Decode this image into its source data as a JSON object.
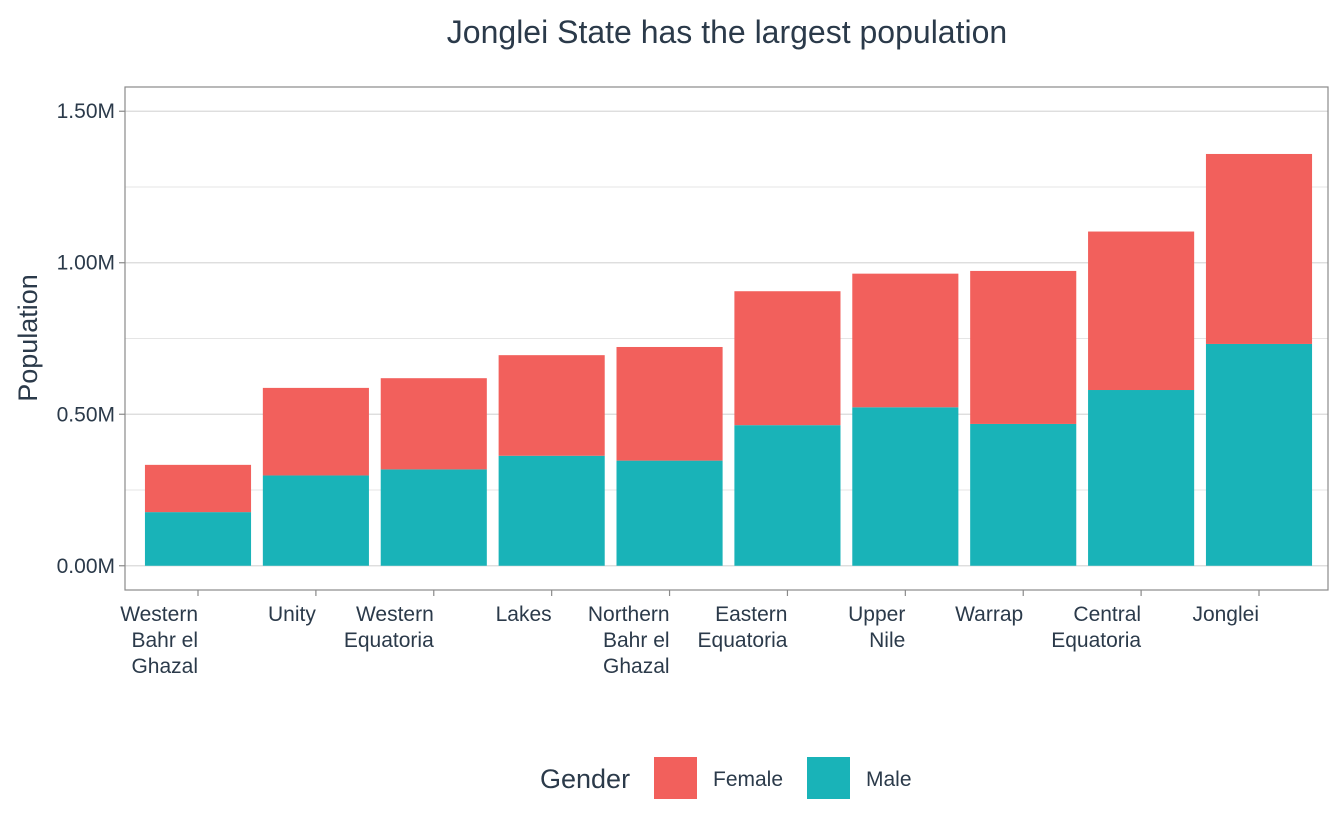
{
  "chart_data": {
    "type": "bar",
    "stacked": true,
    "title": "Jonglei State has the largest population",
    "xlabel": "",
    "ylabel": "Population",
    "ylim": [
      -0.08,
      1.58
    ],
    "y_unit_suffix": "M",
    "yticks": [
      0.0,
      0.5,
      1.0,
      1.5
    ],
    "ytick_labels": [
      "0.00M",
      "0.50M",
      "1.00M",
      "1.50M"
    ],
    "grid": true,
    "categories": [
      "Western Bahr el Ghazal",
      "Unity",
      "Western Equatoria",
      "Lakes",
      "Northern Bahr el Ghazal",
      "Eastern Equatoria",
      "Upper Nile",
      "Warrap",
      "Central Equatoria",
      "Jonglei"
    ],
    "category_label_lines": [
      [
        "Western",
        "Bahr el",
        "Ghazal"
      ],
      [
        "Unity"
      ],
      [
        "Western",
        "Equatoria"
      ],
      [
        "Lakes"
      ],
      [
        "Northern",
        "Bahr el",
        "Ghazal"
      ],
      [
        "Eastern",
        "Equatoria"
      ],
      [
        "Upper",
        "Nile"
      ],
      [
        "Warrap"
      ],
      [
        "Central",
        "Equatoria"
      ],
      [
        "Jonglei"
      ]
    ],
    "series": [
      {
        "name": "Male",
        "color": "#19b3b8",
        "values": [
          0.177,
          0.298,
          0.318,
          0.363,
          0.347,
          0.464,
          0.523,
          0.468,
          0.58,
          0.732
        ]
      },
      {
        "name": "Female",
        "color": "#f2605c",
        "values": [
          0.156,
          0.289,
          0.301,
          0.332,
          0.375,
          0.442,
          0.441,
          0.505,
          0.523,
          0.627
        ]
      }
    ],
    "legend": {
      "title": "Gender",
      "position": "bottom",
      "entries": [
        {
          "label": "Female",
          "color": "#f2605c"
        },
        {
          "label": "Male",
          "color": "#19b3b8"
        }
      ]
    }
  }
}
